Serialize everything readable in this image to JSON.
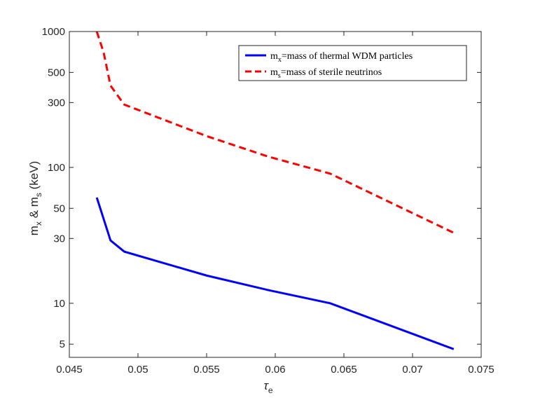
{
  "chart_data": {
    "type": "line",
    "y_scale": "log",
    "xlim": [
      0.045,
      0.075
    ],
    "ylim": [
      4,
      1000
    ],
    "x_ticks": [
      0.045,
      0.05,
      0.055,
      0.06,
      0.065,
      0.07,
      0.075
    ],
    "x_tick_labels": [
      "0.045",
      "0.05",
      "0.055",
      "0.06",
      "0.065",
      "0.07",
      "0.075"
    ],
    "y_ticks": [
      5,
      10,
      30,
      50,
      100,
      300,
      500,
      1000
    ],
    "y_tick_labels": [
      "5",
      "10",
      "30",
      "50",
      "100",
      "300",
      "500",
      "1000"
    ],
    "xlabel": {
      "main": "τ",
      "sub": "e"
    },
    "ylabel": {
      "p1": "m",
      "s1": "x",
      "p2": " & m",
      "s2": "s",
      "p3": " (keV)"
    },
    "grid": false,
    "legend_position": "top-right",
    "series": [
      {
        "legend_main": "m",
        "legend_sub": "x",
        "legend_rest": "=mass of thermal WDM particles",
        "color": "#0000ff",
        "dash": "solid",
        "x": [
          0.047,
          0.048,
          0.049,
          0.055,
          0.0595,
          0.064,
          0.073
        ],
        "y": [
          60,
          29,
          24,
          16,
          12.5,
          10,
          4.6
        ]
      },
      {
        "legend_main": "m",
        "legend_sub": "s",
        "legend_rest": "=mass of sterile neutrinos",
        "color": "#ff0000",
        "dash": "dashed",
        "x": [
          0.047,
          0.0475,
          0.048,
          0.0485,
          0.049,
          0.055,
          0.0595,
          0.064,
          0.073
        ],
        "y": [
          1000,
          700,
          400,
          340,
          290,
          170,
          120,
          90,
          33
        ]
      }
    ]
  }
}
